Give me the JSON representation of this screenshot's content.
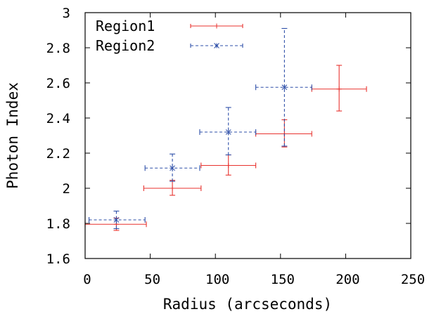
{
  "chart_data": {
    "type": "scatter",
    "xlabel": "Radius (arcseconds)",
    "ylabel": "Photon Index",
    "xlim": [
      0,
      250
    ],
    "ylim": [
      1.6,
      3.0
    ],
    "x_ticks": [
      "0",
      "50",
      "100",
      "150",
      "200",
      "250"
    ],
    "y_ticks": [
      "1.6",
      "1.8",
      "2",
      "2.2",
      "2.4",
      "2.6",
      "2.8",
      "3"
    ],
    "legend_position": "top-left",
    "grid": false,
    "series": [
      {
        "name": "Region1",
        "color": "#e8322e",
        "style": "solid",
        "marker": "plus",
        "points": [
          {
            "x": 24,
            "x_lo": 0,
            "x_hi": 47,
            "y": 1.795,
            "y_lo": 1.76,
            "y_hi": 1.83
          },
          {
            "x": 67,
            "x_lo": 45,
            "x_hi": 89,
            "y": 2.0,
            "y_lo": 1.96,
            "y_hi": 2.045
          },
          {
            "x": 110,
            "x_lo": 89,
            "x_hi": 131,
            "y": 2.13,
            "y_lo": 2.075,
            "y_hi": 2.19
          },
          {
            "x": 153,
            "x_lo": 131,
            "x_hi": 174,
            "y": 2.31,
            "y_lo": 2.235,
            "y_hi": 2.39
          },
          {
            "x": 195,
            "x_lo": 174,
            "x_hi": 216,
            "y": 2.565,
            "y_lo": 2.44,
            "y_hi": 2.7
          }
        ]
      },
      {
        "name": "Region2",
        "color": "#2e4fa8",
        "style": "dashed",
        "marker": "star",
        "points": [
          {
            "x": 24,
            "x_lo": 3,
            "x_hi": 46,
            "y": 1.82,
            "y_lo": 1.77,
            "y_hi": 1.87
          },
          {
            "x": 67,
            "x_lo": 46,
            "x_hi": 88,
            "y": 2.115,
            "y_lo": 2.04,
            "y_hi": 2.195
          },
          {
            "x": 110,
            "x_lo": 88,
            "x_hi": 131,
            "y": 2.32,
            "y_lo": 2.19,
            "y_hi": 2.46
          },
          {
            "x": 153,
            "x_lo": 131,
            "x_hi": 174,
            "y": 2.575,
            "y_lo": 2.24,
            "y_hi": 2.91
          }
        ]
      }
    ]
  }
}
